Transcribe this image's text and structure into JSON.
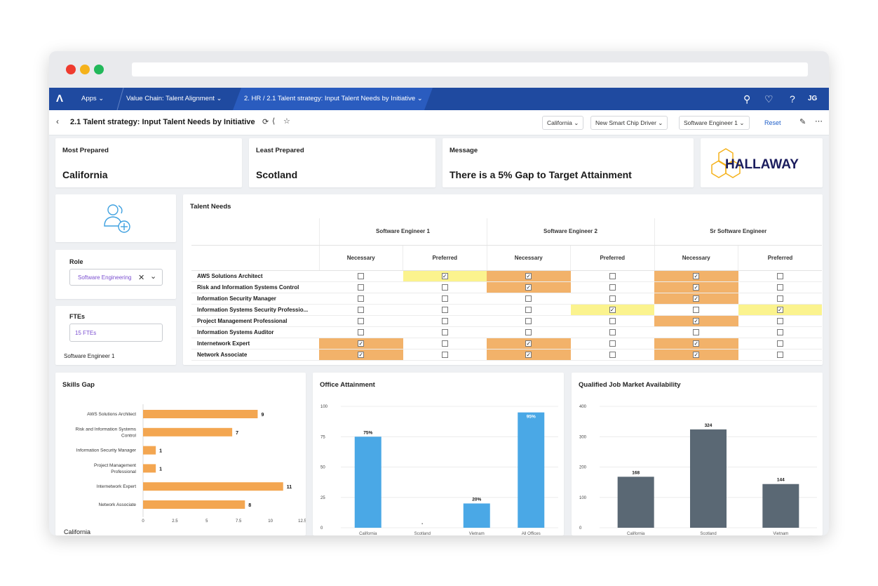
{
  "window": {
    "controls": [
      "#ef3b2f",
      "#f5b21b",
      "#22b85a"
    ]
  },
  "nav": {
    "apps": "Apps",
    "crumb1": "Value Chain: Talent Alignment",
    "crumb2": "2. HR / 2.1 Talent strategy: Input Talent Needs by Initiative",
    "user_initials": "JG"
  },
  "page": {
    "title": "2.1 Talent strategy: Input Talent Needs by Initiative",
    "filters": [
      "California",
      "New Smart Chip Driver",
      "Software Engineer 1"
    ],
    "reset": "Reset"
  },
  "kpis": {
    "most_prepared": {
      "label": "Most Prepared",
      "value": "California"
    },
    "least_prepared": {
      "label": "Least Prepared",
      "value": "Scotland"
    },
    "message": {
      "label": "Message",
      "value": "There is a 5% Gap to Target Attainment"
    }
  },
  "logo": {
    "text": "HALLAWAY"
  },
  "role": {
    "label": "Role",
    "value": "Software Engineering"
  },
  "ftes": {
    "label": "FTEs",
    "value": "15 FTEs",
    "caption": "Software Engineer 1"
  },
  "talent_needs": {
    "title": "Talent Needs",
    "groups": [
      "Software Engineer 1",
      "Software Engineer 2",
      "Sr Software Engineer"
    ],
    "subheaders": [
      "Necessary",
      "Preferred"
    ],
    "rows": [
      {
        "label": "AWS Solutions Architect",
        "checks": [
          0,
          1,
          1,
          0,
          1,
          0
        ],
        "fills": [
          "",
          "yellow",
          "orange",
          "",
          "orange",
          ""
        ]
      },
      {
        "label": "Risk and Information Systems Control",
        "checks": [
          0,
          0,
          1,
          0,
          1,
          0
        ],
        "fills": [
          "",
          "",
          "orange",
          "",
          "orange",
          ""
        ]
      },
      {
        "label": "Information Security Manager",
        "checks": [
          0,
          0,
          0,
          0,
          1,
          0
        ],
        "fills": [
          "",
          "",
          "",
          "",
          "orange",
          ""
        ]
      },
      {
        "label": "Information Systems Security Professio...",
        "checks": [
          0,
          0,
          0,
          1,
          0,
          1
        ],
        "fills": [
          "",
          "",
          "",
          "yellow",
          "",
          "yellow"
        ]
      },
      {
        "label": "Project Management Professional",
        "checks": [
          0,
          0,
          0,
          0,
          1,
          0
        ],
        "fills": [
          "",
          "",
          "",
          "",
          "orange",
          ""
        ]
      },
      {
        "label": "Information Systems Auditor",
        "checks": [
          0,
          0,
          0,
          0,
          0,
          0
        ],
        "fills": [
          "",
          "",
          "",
          "",
          "",
          ""
        ]
      },
      {
        "label": "Internetwork Expert",
        "checks": [
          1,
          0,
          1,
          0,
          1,
          0
        ],
        "fills": [
          "orange",
          "",
          "orange",
          "",
          "orange",
          ""
        ]
      },
      {
        "label": "Network Associate",
        "checks": [
          1,
          0,
          1,
          0,
          1,
          0
        ],
        "fills": [
          "orange",
          "",
          "orange",
          "",
          "orange",
          ""
        ]
      }
    ]
  },
  "chart_data": [
    {
      "type": "bar",
      "orientation": "horizontal",
      "title": "Skills Gap",
      "categories": [
        "AWS Solutions Architect",
        "Risk and Information Systems Control",
        "Information Security Manager",
        "Project Management Professional",
        "Internetwork Expert",
        "Network Associate"
      ],
      "values": [
        9,
        7,
        1,
        1,
        11,
        8
      ],
      "xticks": [
        "0",
        "2.5",
        "5",
        "7.5",
        "10",
        "12.5"
      ],
      "xlim": [
        0,
        12.5
      ],
      "color": "#f3a651",
      "footer": "California"
    },
    {
      "type": "bar",
      "title": "Office Attainment",
      "categories": [
        "California",
        "Scotland",
        "Vietnam",
        "All Offices"
      ],
      "values": [
        75,
        0,
        20,
        95
      ],
      "labels": [
        "75%",
        "-",
        "20%",
        "95%"
      ],
      "yticks": [
        "0",
        "25",
        "50",
        "75",
        "100"
      ],
      "ylim": [
        0,
        100
      ],
      "color": "#4aa8e6"
    },
    {
      "type": "bar",
      "title": "Qualified Job Market Availability",
      "categories": [
        "California",
        "Scotland",
        "Vietnam"
      ],
      "values": [
        168,
        324,
        144
      ],
      "labels": [
        "168",
        "324",
        "144"
      ],
      "yticks": [
        "0",
        "100",
        "200",
        "300",
        "400"
      ],
      "ylim": [
        0,
        400
      ],
      "color": "#5a6874"
    }
  ]
}
